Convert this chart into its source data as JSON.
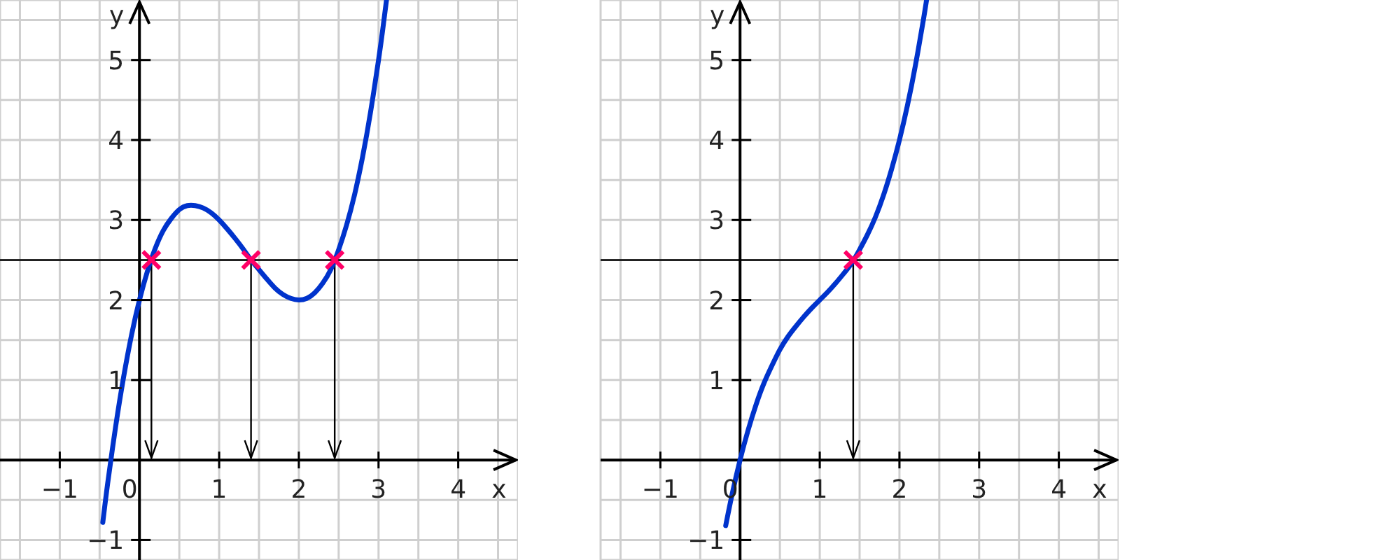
{
  "chart_data": [
    {
      "type": "line",
      "xlabel": "x",
      "ylabel": "y",
      "xlim": [
        -1.75,
        4.75
      ],
      "ylim": [
        -1.25,
        5.75
      ],
      "xticks": [
        {
          "value": -1.5,
          "label": null
        },
        {
          "value": -1,
          "label": "−1"
        },
        {
          "value": -0.5,
          "label": null
        },
        0,
        {
          "value": 0.5,
          "label": null
        },
        1,
        {
          "value": 1.5,
          "label": null
        },
        2,
        {
          "value": 2.5,
          "label": null
        },
        3,
        {
          "value": 3.5,
          "label": null
        },
        4,
        {
          "value": 4.5,
          "label": null
        }
      ],
      "yticks": [
        {
          "value": -1,
          "label": "−1"
        },
        {
          "value": -0.5,
          "label": null
        },
        {
          "value": 0,
          "label": null
        },
        {
          "value": 0.5,
          "label": null
        },
        1,
        {
          "value": 1.5,
          "label": null
        },
        2,
        {
          "value": 2.5,
          "label": null
        },
        3,
        {
          "value": 3.5,
          "label": null
        },
        4,
        {
          "value": 4.5,
          "label": null
        },
        5,
        {
          "value": 5.5,
          "label": null
        }
      ],
      "grid": true,
      "line_style": "solid",
      "x": [
        -0.46,
        -0.4,
        -0.3,
        -0.2,
        -0.1,
        0,
        0.1,
        0.2,
        0.3,
        0.4,
        0.5,
        0.6,
        0.7,
        0.8,
        0.9,
        1,
        1.1,
        1.2,
        1.3,
        1.4,
        1.5,
        1.6,
        1.7,
        1.8,
        1.9,
        2,
        2.1,
        2.2,
        2.3,
        2.4,
        2.5,
        2.6,
        2.7,
        2.8,
        2.9,
        3,
        3.05,
        3.1
      ],
      "series": [
        {
          "color": "#0033cc",
          "values": [
            -0.78,
            -0.3,
            0.41,
            1.03,
            1.56,
            2,
            2.36,
            2.65,
            2.87,
            3.02,
            3.13,
            3.18,
            3.18,
            3.15,
            3.09,
            3,
            2.89,
            2.77,
            2.64,
            2.5,
            2.38,
            2.26,
            2.15,
            2.07,
            2.02,
            2,
            2.02,
            2.09,
            2.21,
            2.38,
            2.63,
            2.94,
            3.32,
            3.79,
            4.35,
            5,
            5.36,
            5.75
          ]
        },
        {
          "type": "scatter",
          "x": [
            0.15,
            1.4,
            2.45
          ],
          "values": [
            2.5,
            2.5,
            2.5
          ],
          "color": "#ff0066",
          "marker": "cross"
        }
      ],
      "ref_lines": [
        {
          "axis": "y",
          "value": 2.5,
          "color": "#000000"
        }
      ]
    },
    {
      "type": "line",
      "xlabel": "x",
      "ylabel": "y",
      "xlim": [
        -1.75,
        4.75
      ],
      "ylim": [
        -1.25,
        5.75
      ],
      "xticks": [
        {
          "value": -1.5,
          "label": null
        },
        {
          "value": -1,
          "label": "−1"
        },
        {
          "value": -0.5,
          "label": null
        },
        0,
        {
          "value": 0.5,
          "label": null
        },
        1,
        {
          "value": 1.5,
          "label": null
        },
        2,
        {
          "value": 2.5,
          "label": null
        },
        3,
        {
          "value": 3.5,
          "label": null
        },
        4,
        {
          "value": 4.5,
          "label": null
        }
      ],
      "yticks": [
        {
          "value": -1,
          "label": "−1"
        },
        {
          "value": -0.5,
          "label": null
        },
        {
          "value": 0,
          "label": null
        },
        {
          "value": 0.5,
          "label": null
        },
        1,
        {
          "value": 1.5,
          "label": null
        },
        2,
        {
          "value": 2.5,
          "label": null
        },
        3,
        {
          "value": 3.5,
          "label": null
        },
        4,
        {
          "value": 4.5,
          "label": null
        },
        5,
        {
          "value": 5.5,
          "label": null
        }
      ],
      "grid": true,
      "line_style": "solid",
      "x": [
        -0.18,
        -0.1,
        0,
        0.1,
        0.2,
        0.3,
        0.4,
        0.5,
        0.6,
        0.7,
        0.8,
        0.9,
        1,
        1.1,
        1.2,
        1.3,
        1.4,
        1.5,
        1.6,
        1.7,
        1.8,
        1.9,
        2,
        2.1,
        2.2,
        2.3,
        2.34
      ],
      "series": [
        {
          "color": "#0033cc",
          "values": [
            -0.82,
            -0.43,
            0,
            0.37,
            0.69,
            0.96,
            1.18,
            1.38,
            1.54,
            1.67,
            1.79,
            1.9,
            2,
            2.1,
            2.21,
            2.33,
            2.46,
            2.63,
            2.82,
            3.04,
            3.31,
            3.63,
            4,
            4.43,
            4.93,
            5.5,
            5.75
          ]
        },
        {
          "type": "scatter",
          "x": [
            1.42
          ],
          "values": [
            2.5
          ],
          "color": "#ff0066",
          "marker": "cross"
        }
      ],
      "ref_lines": [
        {
          "axis": "y",
          "value": 2.5,
          "color": "#000000"
        }
      ]
    }
  ]
}
